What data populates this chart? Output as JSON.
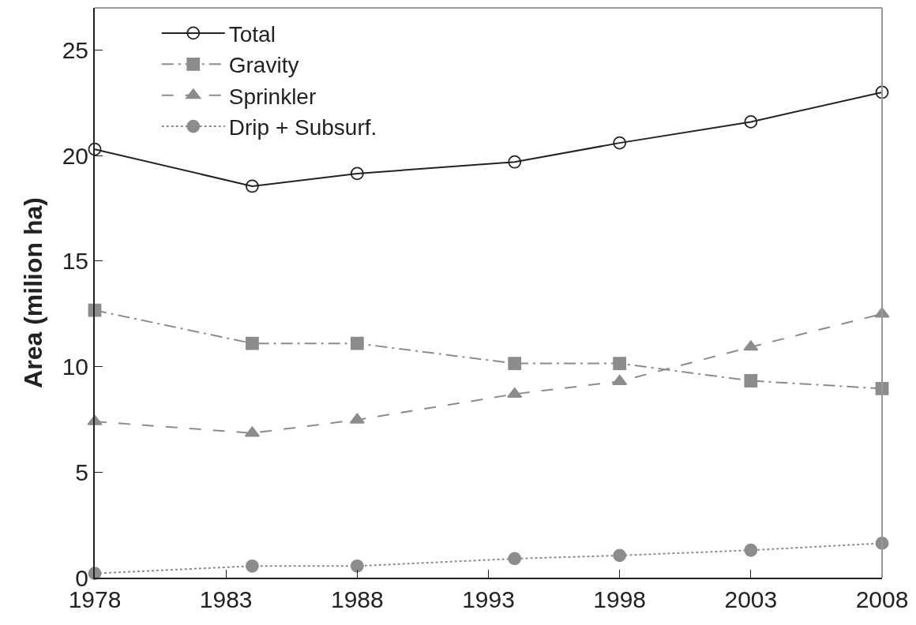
{
  "chart_data": {
    "type": "line",
    "ylabel": "Area (milion ha)",
    "x": [
      1978,
      1984,
      1988,
      1994,
      1998,
      2003,
      2008
    ],
    "series": [
      {
        "name": "Total",
        "color": "#222222",
        "marker": "circle-open",
        "line_style": "solid",
        "values": [
          20.3,
          18.55,
          19.15,
          19.7,
          20.6,
          21.6,
          23.0
        ]
      },
      {
        "name": "Gravity",
        "color": "#8c8c8c",
        "marker": "square",
        "line_style": "dashdot",
        "values": [
          12.67,
          11.1,
          11.1,
          10.15,
          10.15,
          9.33,
          8.96
        ]
      },
      {
        "name": "Sprinkler",
        "color": "#8c8c8c",
        "marker": "triangle",
        "line_style": "dashed",
        "values": [
          7.4,
          6.85,
          7.48,
          8.7,
          9.3,
          10.93,
          12.5
        ]
      },
      {
        "name": "Drip + Subsurf.",
        "color": "#8c8c8c",
        "marker": "circle",
        "line_style": "dotted",
        "values": [
          0.2,
          0.55,
          0.55,
          0.9,
          1.05,
          1.3,
          1.63
        ]
      }
    ],
    "xlim": [
      1978,
      2008
    ],
    "xticks": [
      1978,
      1983,
      1988,
      1993,
      1998,
      2003,
      2008
    ],
    "ylim": [
      0,
      27
    ],
    "yticks": [
      0,
      5,
      10,
      15,
      20,
      25
    ],
    "legend": "top left"
  }
}
